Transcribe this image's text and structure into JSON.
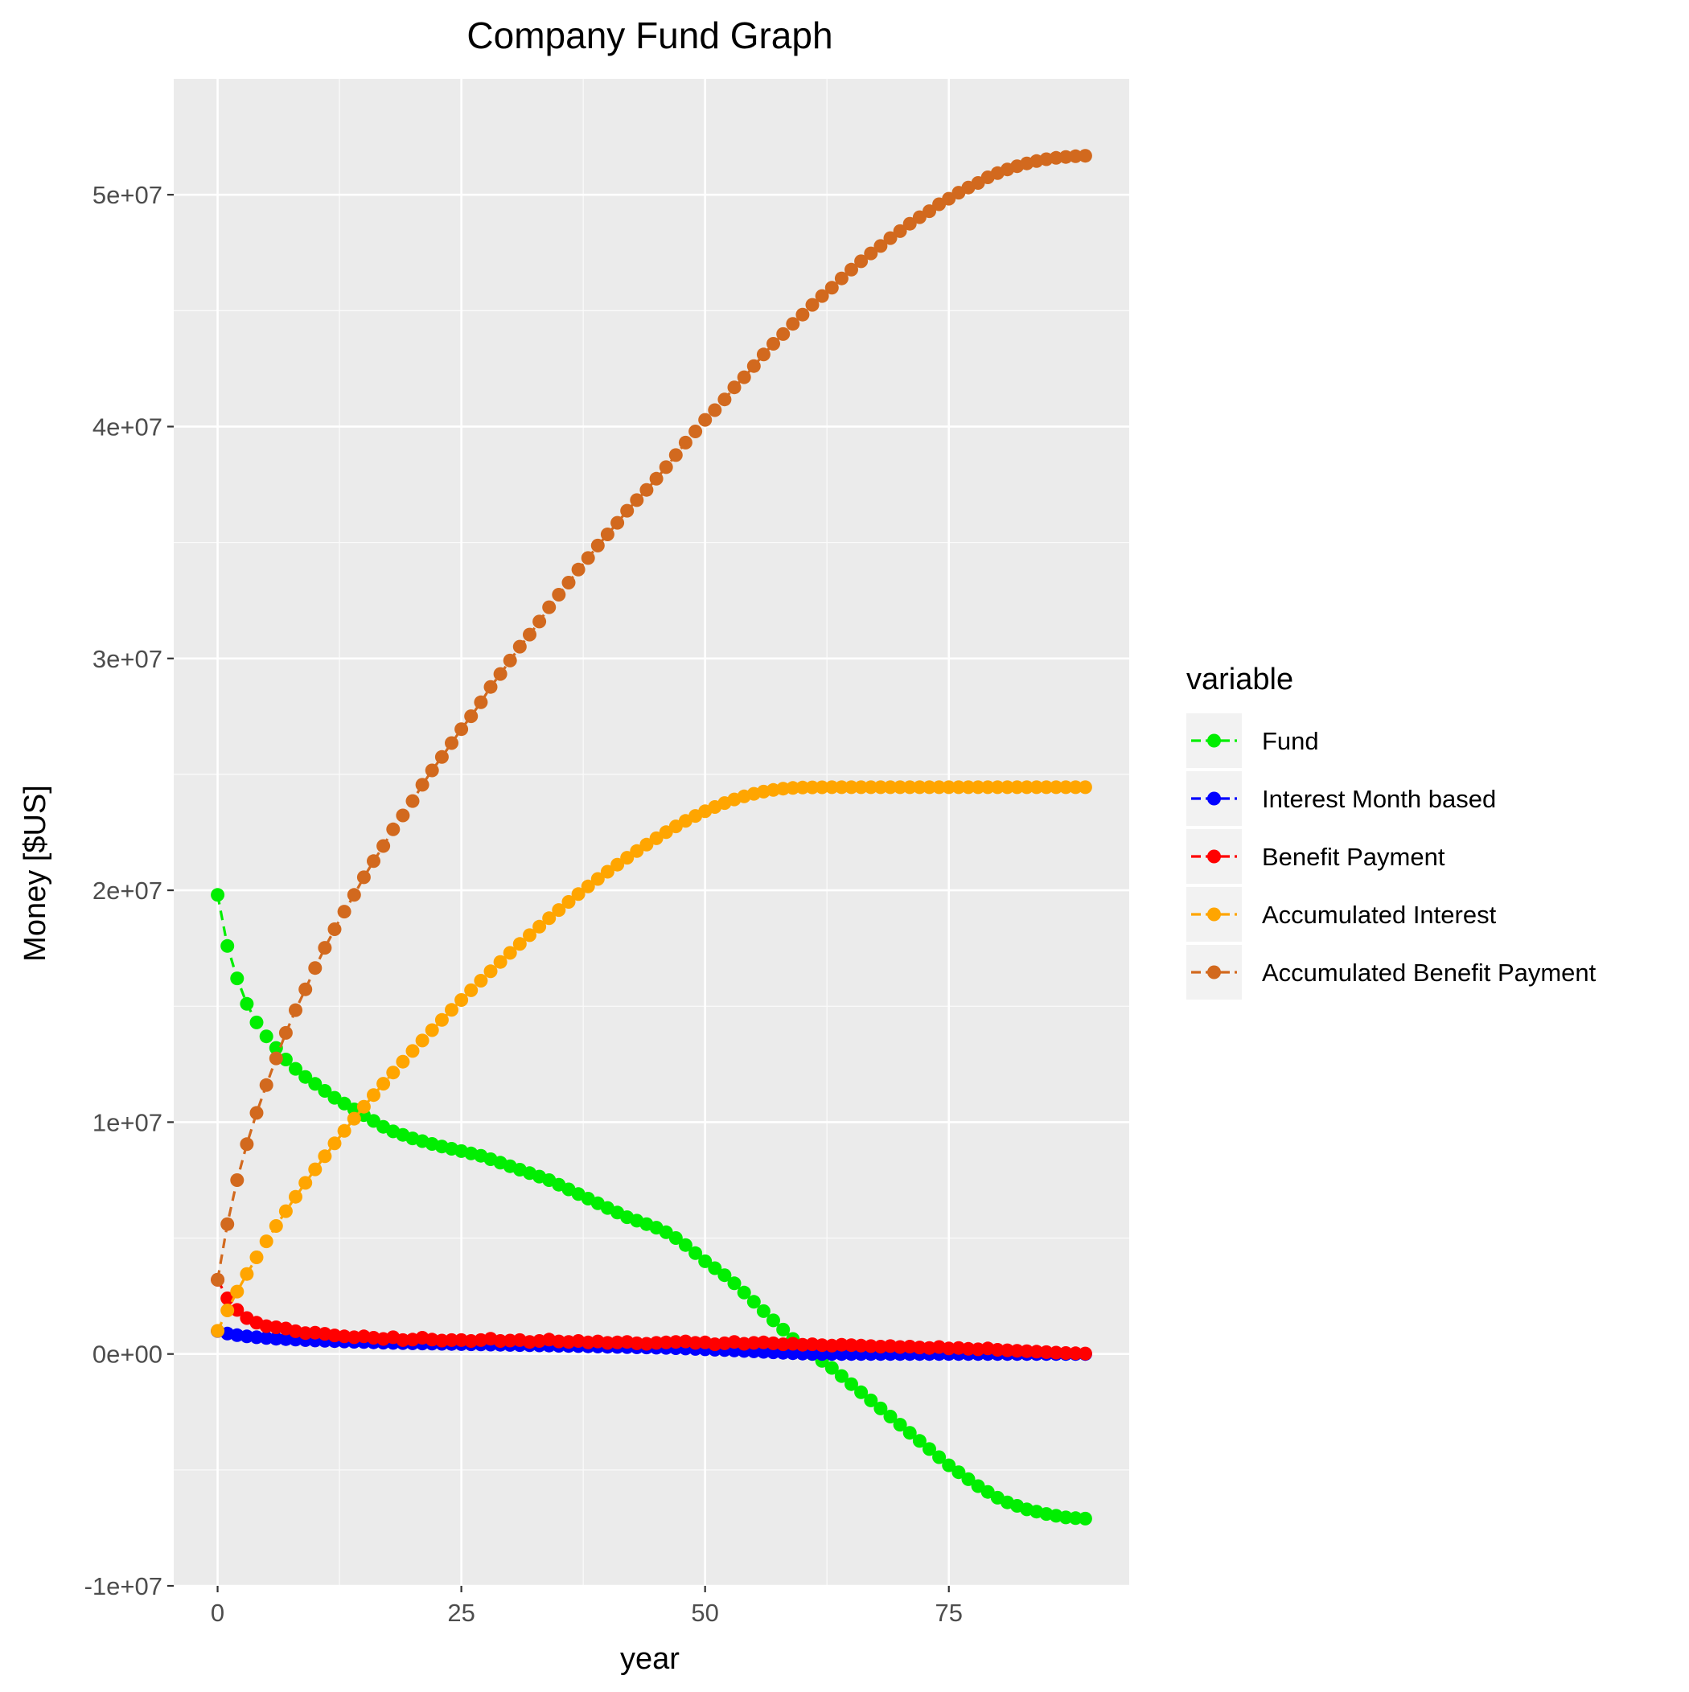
{
  "chart_data": {
    "type": "line",
    "title": "Company Fund Graph",
    "xlabel": "year",
    "ylabel": "Money [$US]",
    "xlim": [
      -4.5,
      93.5
    ],
    "ylim": [
      -10000000,
      55000000
    ],
    "x_ticks": [
      0,
      25,
      50,
      75
    ],
    "x_tick_labels": [
      "0",
      "25",
      "50",
      "75"
    ],
    "y_ticks": [
      -10000000,
      0,
      10000000,
      20000000,
      30000000,
      40000000,
      50000000
    ],
    "y_tick_labels": [
      "-1e+07",
      "0e+00",
      "1e+07",
      "2e+07",
      "3e+07",
      "4e+07",
      "5e+07"
    ],
    "grid": true,
    "legend": {
      "title": "variable",
      "placement": "right"
    },
    "line_style": "dashed with point markers",
    "panel_background": "#ebebeb",
    "x": [
      0,
      1,
      2,
      3,
      4,
      5,
      6,
      7,
      8,
      9,
      10,
      11,
      12,
      13,
      14,
      15,
      16,
      17,
      18,
      19,
      20,
      21,
      22,
      23,
      24,
      25,
      26,
      27,
      28,
      29,
      30,
      31,
      32,
      33,
      34,
      35,
      36,
      37,
      38,
      39,
      40,
      41,
      42,
      43,
      44,
      45,
      46,
      47,
      48,
      49,
      50,
      51,
      52,
      53,
      54,
      55,
      56,
      57,
      58,
      59,
      60,
      61,
      62,
      63,
      64,
      65,
      66,
      67,
      68,
      69,
      70,
      71,
      72,
      73,
      74,
      75,
      76,
      77,
      78,
      79,
      80,
      81,
      82,
      83,
      84,
      85,
      86,
      87,
      88,
      89
    ],
    "series": [
      {
        "name": "Fund",
        "color": "#00ee00",
        "values": [
          19800000,
          17600000,
          16200000,
          15100000,
          14300000,
          13700000,
          13200000,
          12700000,
          12300000,
          11950000,
          11650000,
          11350000,
          11050000,
          10800000,
          10550000,
          10300000,
          10050000,
          9800000,
          9600000,
          9450000,
          9300000,
          9180000,
          9060000,
          8950000,
          8850000,
          8750000,
          8650000,
          8550000,
          8400000,
          8250000,
          8100000,
          7950000,
          7800000,
          7650000,
          7500000,
          7300000,
          7100000,
          6900000,
          6700000,
          6500000,
          6300000,
          6100000,
          5900000,
          5750000,
          5600000,
          5450000,
          5250000,
          5000000,
          4700000,
          4350000,
          4000000,
          3700000,
          3400000,
          3050000,
          2650000,
          2250000,
          1850000,
          1450000,
          1050000,
          650000,
          300000,
          0,
          -300000,
          -600000,
          -950000,
          -1300000,
          -1650000,
          -2000000,
          -2350000,
          -2700000,
          -3050000,
          -3400000,
          -3750000,
          -4100000,
          -4450000,
          -4800000,
          -5100000,
          -5400000,
          -5700000,
          -5950000,
          -6200000,
          -6400000,
          -6550000,
          -6700000,
          -6800000,
          -6900000,
          -6980000,
          -7050000,
          -7080000,
          -7100000
        ]
      },
      {
        "name": "Interest Month based",
        "color": "#0000ff",
        "values": [
          990000,
          880000,
          810000,
          760000,
          720000,
          690000,
          660000,
          640000,
          620000,
          600000,
          583000,
          567000,
          553000,
          540000,
          527000,
          515000,
          503000,
          490000,
          480000,
          470000,
          460000,
          453000,
          447000,
          440000,
          433000,
          427000,
          420000,
          413000,
          407000,
          400000,
          393000,
          385000,
          377000,
          370000,
          363000,
          355000,
          347000,
          338000,
          330000,
          322000,
          313000,
          305000,
          297000,
          288000,
          280000,
          272000,
          263000,
          250000,
          235000,
          218000,
          200000,
          185000,
          170000,
          153000,
          133000,
          113000,
          93000,
          73000,
          53000,
          33000,
          16000,
          8000,
          4000,
          2000,
          1000,
          500,
          300,
          200,
          100,
          0,
          0,
          0,
          0,
          0,
          0,
          0,
          0,
          0,
          0,
          0,
          0,
          0,
          0,
          0,
          0,
          0,
          0,
          0,
          0,
          0
        ]
      },
      {
        "name": "Benefit Payment",
        "color": "#ff0000",
        "values": [
          3200000,
          2400000,
          1900000,
          1550000,
          1350000,
          1200000,
          1150000,
          1100000,
          980000,
          900000,
          920000,
          870000,
          800000,
          760000,
          720000,
          760000,
          700000,
          650000,
          720000,
          600000,
          620000,
          700000,
          620000,
          580000,
          600000,
          600000,
          560000,
          600000,
          660000,
          560000,
          580000,
          600000,
          520000,
          560000,
          620000,
          540000,
          520000,
          560000,
          500000,
          540000,
          480000,
          500000,
          520000,
          460000,
          440000,
          480000,
          500000,
          520000,
          540000,
          480000,
          500000,
          420000,
          460000,
          520000,
          440000,
          480000,
          500000,
          460000,
          420000,
          440000,
          400000,
          420000,
          380000,
          360000,
          400000,
          380000,
          360000,
          340000,
          320000,
          340000,
          300000,
          320000,
          280000,
          260000,
          300000,
          240000,
          260000,
          220000,
          200000,
          240000,
          180000,
          160000,
          140000,
          120000,
          100000,
          80000,
          60000,
          40000,
          30000,
          20000
        ]
      },
      {
        "name": "Accumulated Interest",
        "color": "#ffa500",
        "values": [
          1000000,
          1880000,
          2690000,
          3450000,
          4170000,
          4860000,
          5520000,
          6160000,
          6780000,
          7380000,
          7963000,
          8530000,
          9083000,
          9623000,
          10150000,
          10665000,
          11168000,
          11658000,
          12138000,
          12608000,
          13068000,
          13521000,
          13968000,
          14408000,
          14841000,
          15268000,
          15688000,
          16101000,
          16508000,
          16908000,
          17301000,
          17686000,
          18063000,
          18433000,
          18796000,
          19151000,
          19498000,
          19836000,
          20166000,
          20488000,
          20801000,
          21106000,
          21403000,
          21691000,
          21971000,
          22243000,
          22506000,
          22756000,
          22991000,
          23209000,
          23409000,
          23594000,
          23764000,
          23917000,
          24050000,
          24163000,
          24256000,
          24329000,
          24382000,
          24415000,
          24431000,
          24439000,
          24443000,
          24445000,
          24446000,
          24446500,
          24446800,
          24447000,
          24447100,
          24447100,
          24447100,
          24447100,
          24447100,
          24447100,
          24447100,
          24447100,
          24447100,
          24447100,
          24447100,
          24447100,
          24447100,
          24447100,
          24447100,
          24447100,
          24447100,
          24447100,
          24447100,
          24447100,
          24447100,
          24447100
        ]
      },
      {
        "name": "Accumulated Benefit Payment",
        "color": "#d2691e",
        "values": [
          3200000,
          5600000,
          7500000,
          9050000,
          10400000,
          11600000,
          12750000,
          13850000,
          14830000,
          15730000,
          16650000,
          17520000,
          18320000,
          19080000,
          19800000,
          20560000,
          21260000,
          21910000,
          22630000,
          23230000,
          23850000,
          24550000,
          25170000,
          25750000,
          26350000,
          26950000,
          27510000,
          28110000,
          28770000,
          29330000,
          29910000,
          30510000,
          31030000,
          31590000,
          32210000,
          32750000,
          33270000,
          33830000,
          34330000,
          34870000,
          35350000,
          35850000,
          36370000,
          36830000,
          37270000,
          37750000,
          38250000,
          38770000,
          39310000,
          39790000,
          40290000,
          40710000,
          41170000,
          41690000,
          42130000,
          42610000,
          43110000,
          43570000,
          43990000,
          44430000,
          44830000,
          45250000,
          45630000,
          45990000,
          46390000,
          46770000,
          47130000,
          47470000,
          47790000,
          48130000,
          48430000,
          48750000,
          49030000,
          49290000,
          49590000,
          49830000,
          50090000,
          50310000,
          50510000,
          50750000,
          50930000,
          51090000,
          51230000,
          51350000,
          51450000,
          51530000,
          51590000,
          51630000,
          51660000,
          51680000
        ]
      }
    ]
  }
}
